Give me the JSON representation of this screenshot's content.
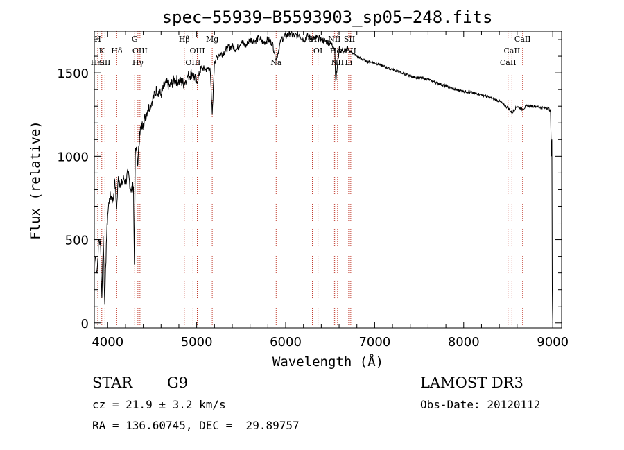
{
  "chart_data": {
    "type": "line",
    "title": "spec−55939−B5593903_sp05−248.fits",
    "xlabel": "Wavelength (Å)",
    "ylabel": "Flux (relative)",
    "xlim": [
      3850,
      9100
    ],
    "ylim": [
      -30,
      1750
    ],
    "xticks": [
      4000,
      5000,
      6000,
      7000,
      8000,
      9000
    ],
    "xtick_labels": [
      "4000",
      "5000",
      "6000",
      "7000",
      "8000",
      "9000"
    ],
    "yticks": [
      0,
      500,
      1000,
      1500
    ],
    "ytick_labels": [
      "0",
      "500",
      "1000",
      "1500"
    ],
    "series": [
      {
        "name": "spectrum",
        "x": [
          3860,
          3880,
          3900,
          3920,
          3935,
          3950,
          3968,
          3985,
          4000,
          4020,
          4040,
          4060,
          4080,
          4101,
          4120,
          4150,
          4180,
          4200,
          4230,
          4260,
          4290,
          4300,
          4310,
          4320,
          4340,
          4360,
          4400,
          4450,
          4500,
          4550,
          4600,
          4650,
          4700,
          4750,
          4800,
          4861,
          4900,
          4950,
          5000,
          5050,
          5100,
          5150,
          5175,
          5200,
          5250,
          5300,
          5350,
          5400,
          5450,
          5500,
          5550,
          5600,
          5650,
          5700,
          5750,
          5800,
          5850,
          5893,
          5950,
          6000,
          6050,
          6100,
          6150,
          6200,
          6250,
          6300,
          6350,
          6400,
          6450,
          6500,
          6550,
          6563,
          6600,
          6650,
          6700,
          6750,
          6800,
          6900,
          7000,
          7100,
          7200,
          7300,
          7400,
          7500,
          7600,
          7700,
          7800,
          7900,
          8000,
          8100,
          8200,
          8300,
          8400,
          8498,
          8542,
          8600,
          8662,
          8700,
          8800,
          8900,
          8950,
          8975,
          8985,
          8990,
          8995,
          9000
        ],
        "values": [
          400,
          300,
          500,
          470,
          150,
          520,
          110,
          480,
          650,
          750,
          760,
          730,
          860,
          680,
          880,
          820,
          870,
          840,
          900,
          800,
          820,
          350,
          1000,
          1050,
          950,
          1150,
          1200,
          1280,
          1330,
          1400,
          1370,
          1440,
          1420,
          1460,
          1450,
          1440,
          1480,
          1500,
          1440,
          1530,
          1520,
          1530,
          1250,
          1570,
          1610,
          1620,
          1650,
          1660,
          1640,
          1690,
          1660,
          1700,
          1690,
          1710,
          1680,
          1700,
          1680,
          1580,
          1700,
          1720,
          1740,
          1720,
          1730,
          1700,
          1720,
          1700,
          1710,
          1700,
          1690,
          1680,
          1650,
          1450,
          1640,
          1630,
          1640,
          1620,
          1600,
          1570,
          1560,
          1540,
          1520,
          1500,
          1480,
          1470,
          1460,
          1440,
          1420,
          1400,
          1390,
          1380,
          1370,
          1350,
          1330,
          1290,
          1260,
          1300,
          1280,
          1300,
          1300,
          1290,
          1290,
          1270,
          1000,
          1100,
          200,
          0
        ]
      }
    ],
    "spectral_lines": [
      {
        "wl": 3889,
        "label": "H",
        "row": 0
      },
      {
        "wl": 3934,
        "label": "K",
        "row": 1
      },
      {
        "wl": 3889,
        "label": "HeI",
        "row": 2
      },
      {
        "wl": 3970,
        "label": "SII",
        "row": 2
      },
      {
        "wl": 4102,
        "label": "Hδ",
        "row": 1
      },
      {
        "wl": 4304,
        "label": "G",
        "row": 0
      },
      {
        "wl": 4363,
        "label": "OIII",
        "row": 1
      },
      {
        "wl": 4340,
        "label": "Hγ",
        "row": 2
      },
      {
        "wl": 4861,
        "label": "Hβ",
        "row": 0
      },
      {
        "wl": 5007,
        "label": "OIII",
        "row": 1
      },
      {
        "wl": 4959,
        "label": "OIII",
        "row": 2
      },
      {
        "wl": 5175,
        "label": "Mg",
        "row": 0
      },
      {
        "wl": 5893,
        "label": "Na",
        "row": 2
      },
      {
        "wl": 6300,
        "label": "OI",
        "row": 0
      },
      {
        "wl": 6363,
        "label": "OI",
        "row": 1
      },
      {
        "wl": 6548,
        "label": "NII",
        "row": 0
      },
      {
        "wl": 6583,
        "label": "NII",
        "row": 2
      },
      {
        "wl": 6563,
        "label": "Hα",
        "row": 1
      },
      {
        "wl": 6716,
        "label": "SII",
        "row": 0
      },
      {
        "wl": 6731,
        "label": "SII",
        "row": 1
      },
      {
        "wl": 6708,
        "label": "Li",
        "row": 2
      },
      {
        "wl": 8498,
        "label": "CaII",
        "row": 2
      },
      {
        "wl": 8542,
        "label": "CaII",
        "row": 1
      },
      {
        "wl": 8662,
        "label": "CaII",
        "row": 0
      }
    ]
  },
  "info": {
    "object_class": "STAR",
    "subclass": "G9",
    "cz": "cz = 21.9 ± 3.2 km/s",
    "coords": "RA = 136.60745, DEC =  29.89757",
    "survey": "LAMOST DR3",
    "obs_date": "Obs-Date: 20120112"
  },
  "colors": {
    "line_marker": "#c0392b",
    "spectrum": "#000000"
  }
}
